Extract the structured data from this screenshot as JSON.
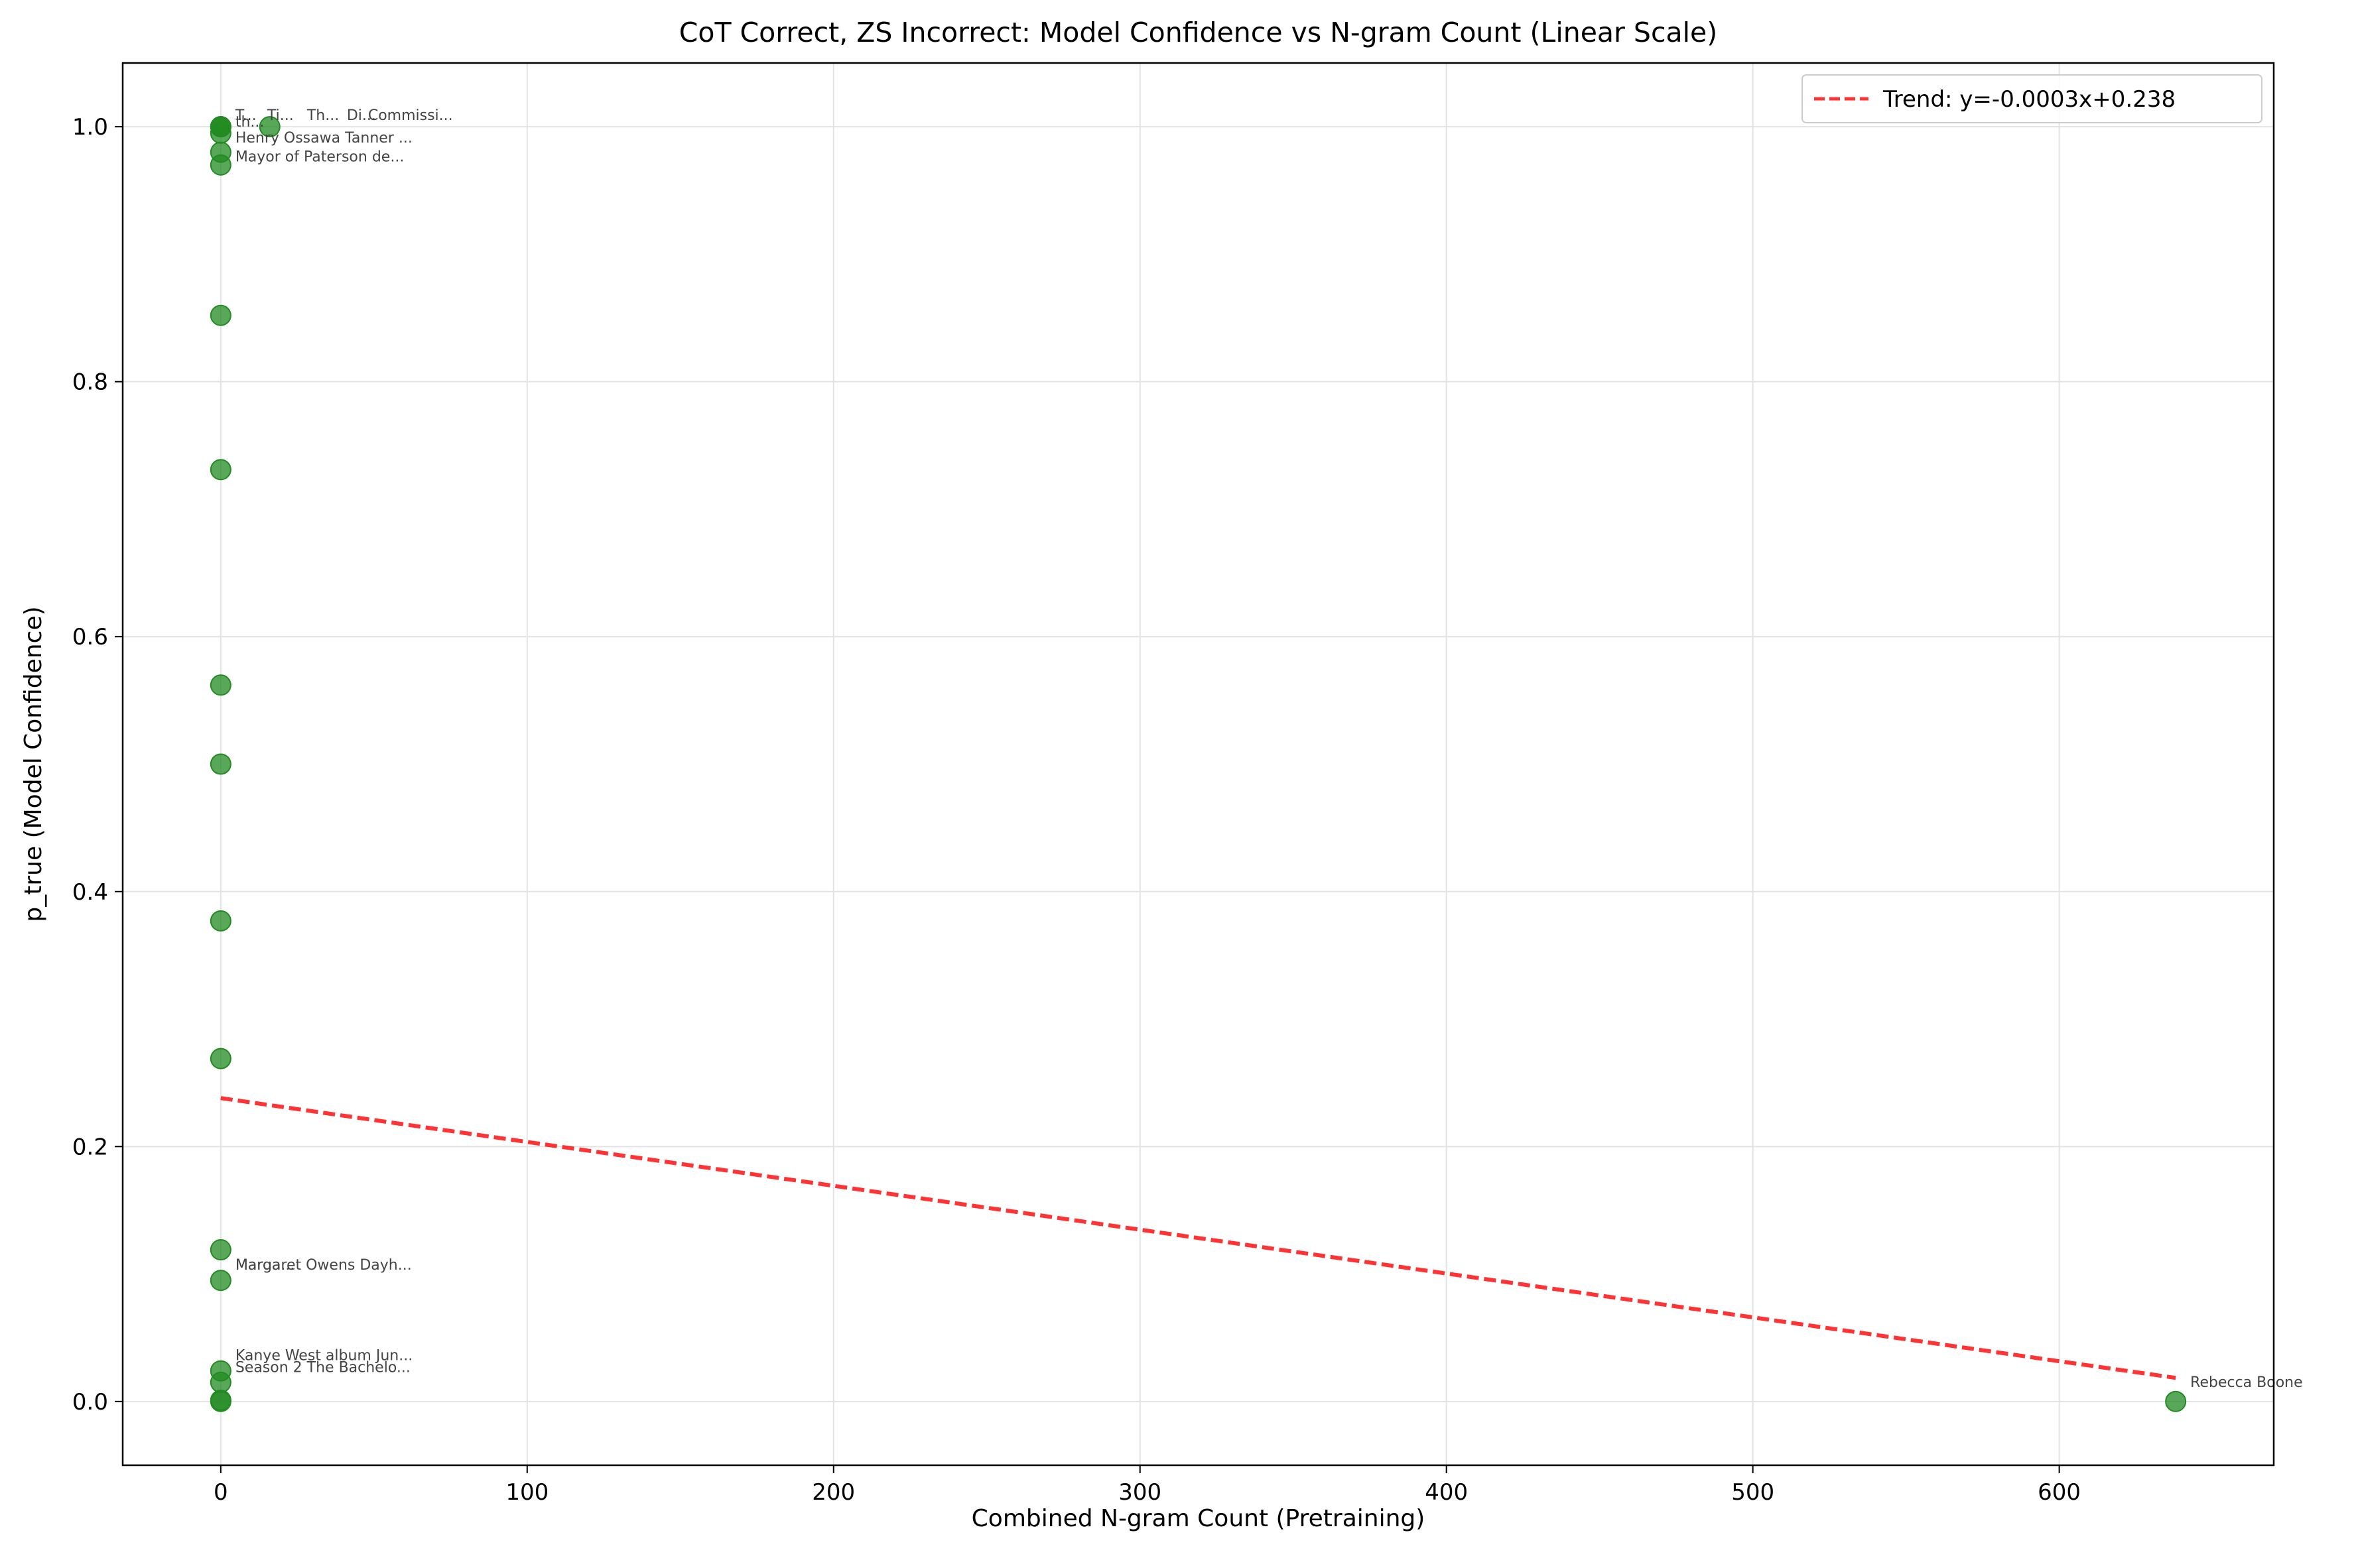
{
  "chart_data": {
    "type": "scatter",
    "title": "CoT Correct, ZS Incorrect: Model Confidence vs N-gram Count (Linear Scale)",
    "xlabel": "Combined N-gram Count (Pretraining)",
    "ylabel": "p_true (Model Confidence)",
    "xlim": [
      -32,
      670
    ],
    "ylim": [
      -0.05,
      1.05
    ],
    "xticks": [
      0,
      100,
      200,
      300,
      400,
      500,
      600
    ],
    "yticks": [
      0.0,
      0.2,
      0.4,
      0.6,
      0.8,
      1.0
    ],
    "xtick_labels": [
      "0",
      "100",
      "200",
      "300",
      "400",
      "500",
      "600"
    ],
    "ytick_labels": [
      "0.0",
      "0.2",
      "0.4",
      "0.6",
      "0.8",
      "1.0"
    ],
    "grid": true,
    "legend_position": "top-right",
    "colors": {
      "points": "#228b22",
      "trend": "#ff0000",
      "annotation": "#444444"
    },
    "series": [
      {
        "name": "",
        "points": [
          {
            "x": 0,
            "y": 1.0
          },
          {
            "x": 0,
            "y": 1.0
          },
          {
            "x": 0,
            "y": 1.0
          },
          {
            "x": 16,
            "y": 1.0
          },
          {
            "x": 0,
            "y": 0.995
          },
          {
            "x": 0,
            "y": 0.98
          },
          {
            "x": 0,
            "y": 0.97
          },
          {
            "x": 0,
            "y": 0.852
          },
          {
            "x": 0,
            "y": 0.731
          },
          {
            "x": 0,
            "y": 0.562
          },
          {
            "x": 0,
            "y": 0.5
          },
          {
            "x": 0,
            "y": 0.377
          },
          {
            "x": 0,
            "y": 0.269
          },
          {
            "x": 0,
            "y": 0.119
          },
          {
            "x": 0,
            "y": 0.095
          },
          {
            "x": 0,
            "y": 0.024
          },
          {
            "x": 0,
            "y": 0.015
          },
          {
            "x": 0,
            "y": 0.001
          },
          {
            "x": 0,
            "y": 0.0
          },
          {
            "x": 638,
            "y": 0.0
          }
        ]
      }
    ],
    "trend": {
      "label": "Trend: y=-0.0003x+0.238",
      "slope": -0.000344,
      "intercept": 0.238,
      "x_range": [
        0,
        638
      ]
    },
    "annotations": [
      {
        "text": "Commissi...",
        "x": 0,
        "y": 1.0,
        "dx": 222,
        "dy": -10
      },
      {
        "text": "T...",
        "x": 0,
        "y": 1.0,
        "dx": 22,
        "dy": -10
      },
      {
        "text": "Ti...",
        "x": 0,
        "y": 1.0,
        "dx": 70,
        "dy": -10
      },
      {
        "text": "Th...",
        "x": 0,
        "y": 1.0,
        "dx": 130,
        "dy": -10
      },
      {
        "text": "Di...",
        "x": 0,
        "y": 1.0,
        "dx": 190,
        "dy": -10
      },
      {
        "text": "th...",
        "x": 0,
        "y": 1.0,
        "dx": 22,
        "dy": 0
      },
      {
        "text": "Henry Ossawa Tanner ...",
        "x": 0,
        "y": 0.995,
        "dx": 22,
        "dy": 14
      },
      {
        "text": "Mayor of Paterson de...",
        "x": 0,
        "y": 0.98,
        "dx": 22,
        "dy": 14
      },
      {
        "text": "Marga...",
        "x": 0,
        "y": 0.119,
        "dx": 22,
        "dy": 30
      },
      {
        "text": "Margaret Owens Dayh...",
        "x": 0,
        "y": 0.119,
        "dx": 22,
        "dy": 30
      },
      {
        "text": "Kanye West album Jun...",
        "x": 0,
        "y": 0.024,
        "dx": 22,
        "dy": -16
      },
      {
        "text": "Season 2 The Bachelo...",
        "x": 0,
        "y": 0.024,
        "dx": 22,
        "dy": 2
      },
      {
        "text": "Rebecca Boone",
        "x": 638,
        "y": 0.0,
        "dx": 22,
        "dy": -22
      }
    ]
  }
}
